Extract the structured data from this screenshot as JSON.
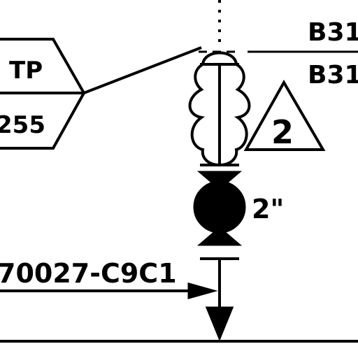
{
  "tag": {
    "top_label": "TP",
    "bottom_label": "255"
  },
  "ref_top": "B31",
  "ref_bottom": "B31",
  "triangle_note": "2",
  "valve_size": "2\"",
  "line_label": "70027-C9C1"
}
